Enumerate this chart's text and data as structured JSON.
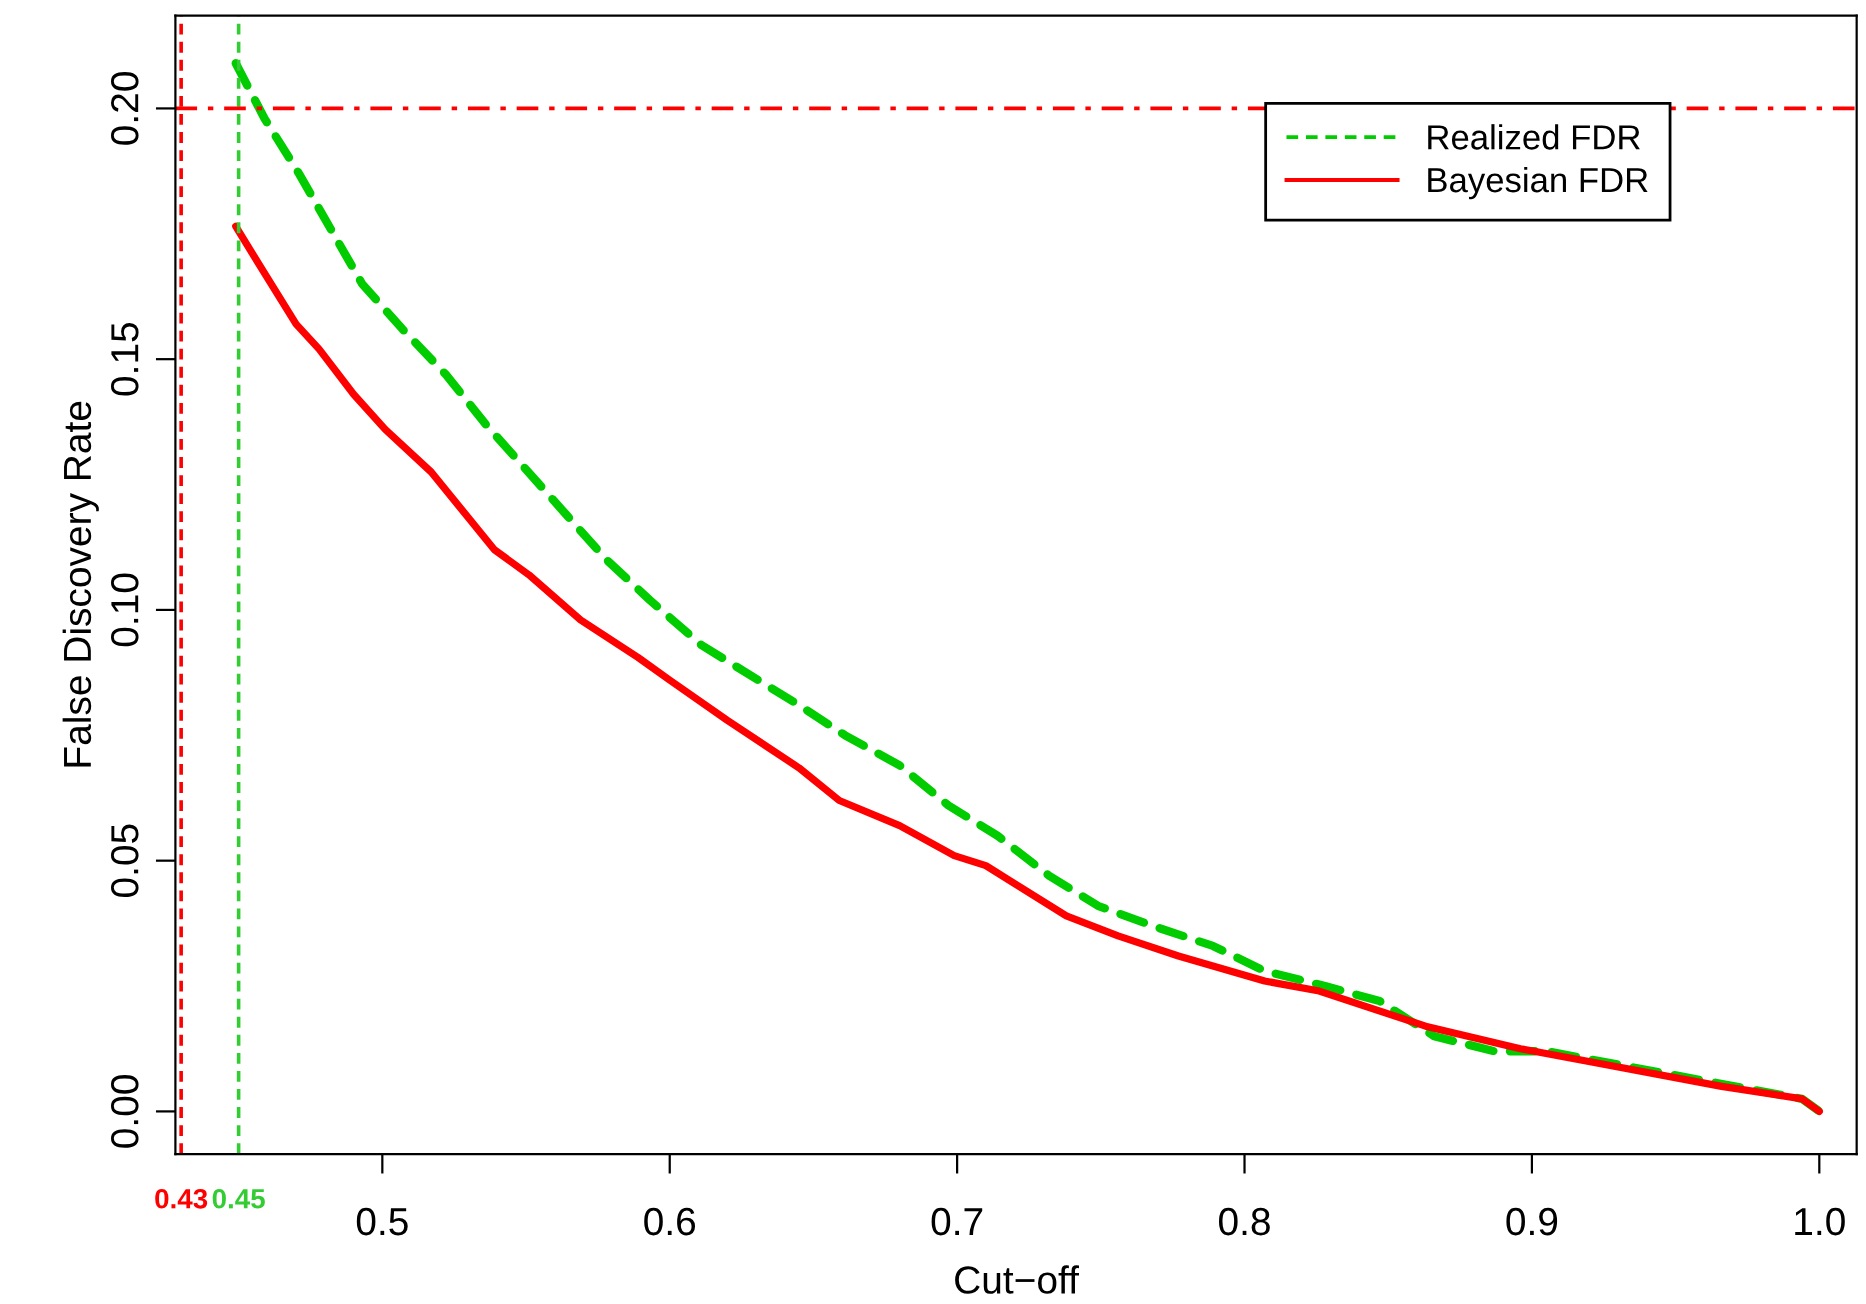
{
  "chart_data": {
    "type": "line",
    "xlabel": "Cut−off",
    "ylabel": "False Discovery Rate",
    "xlim": [
      0.428,
      1.013
    ],
    "ylim": [
      -0.0085,
      0.2185
    ],
    "xticks": [
      0.5,
      0.6,
      0.7,
      0.8,
      0.9,
      {
        "value": 1.0,
        "label": "1.0"
      }
    ],
    "yticks": [
      {
        "value": 0,
        "label": "0.00"
      },
      {
        "value": 0.05,
        "label": "0.05"
      },
      {
        "value": 0.1,
        "label": "0.10"
      },
      {
        "value": 0.15,
        "label": "0.15"
      },
      {
        "value": 0.2,
        "label": "0.20"
      }
    ],
    "grid": false,
    "legend": "top right",
    "marker": "none",
    "series": [
      {
        "name": "Realized FDR",
        "color": "#00cc00",
        "line_style": "dashed",
        "x": [
          0.449,
          0.459,
          0.471,
          0.483,
          0.493,
          0.507,
          0.522,
          0.536,
          0.55,
          0.564,
          0.578,
          0.593,
          0.611,
          0.645,
          0.661,
          0.68,
          0.697,
          0.714,
          0.732,
          0.749,
          0.768,
          0.789,
          0.807,
          0.828,
          0.847,
          0.866,
          0.887,
          0.905,
          0.947,
          0.994,
          1.0
        ],
        "values": [
          0.209,
          0.198,
          0.187,
          0.175,
          0.165,
          0.156,
          0.147,
          0.137,
          0.128,
          0.119,
          0.11,
          0.102,
          0.093,
          0.081,
          0.075,
          0.069,
          0.061,
          0.055,
          0.047,
          0.041,
          0.037,
          0.033,
          0.028,
          0.025,
          0.022,
          0.015,
          0.012,
          0.012,
          0.0075,
          0.0025,
          0.0
        ]
      },
      {
        "name": "Bayesian FDR",
        "color": "#ff0000",
        "line_style": "solid",
        "x": [
          0.449,
          0.457,
          0.47,
          0.478,
          0.49,
          0.501,
          0.517,
          0.539,
          0.551,
          0.569,
          0.589,
          0.6,
          0.62,
          0.645,
          0.659,
          0.68,
          0.699,
          0.71,
          0.738,
          0.756,
          0.777,
          0.807,
          0.826,
          0.863,
          0.896,
          0.924,
          0.966,
          0.994,
          1.0
        ],
        "values": [
          0.1765,
          0.169,
          0.157,
          0.152,
          0.143,
          0.136,
          0.1275,
          0.112,
          0.107,
          0.098,
          0.0905,
          0.086,
          0.078,
          0.0685,
          0.062,
          0.057,
          0.051,
          0.049,
          0.039,
          0.035,
          0.031,
          0.026,
          0.024,
          0.017,
          0.0125,
          0.0095,
          0.005,
          0.0025,
          0.0
        ]
      }
    ],
    "ref_lines": [
      {
        "axis": "x",
        "value": 0.43,
        "label": "0.43",
        "color": "#ff0000",
        "line_style": "dashed"
      },
      {
        "axis": "x",
        "value": 0.45,
        "label": "0.45",
        "color": "#33cc33",
        "line_style": "dashed"
      },
      {
        "axis": "y",
        "value": 0.2,
        "label": null,
        "color": "#ff0000",
        "line_style": "dashdot"
      }
    ]
  }
}
